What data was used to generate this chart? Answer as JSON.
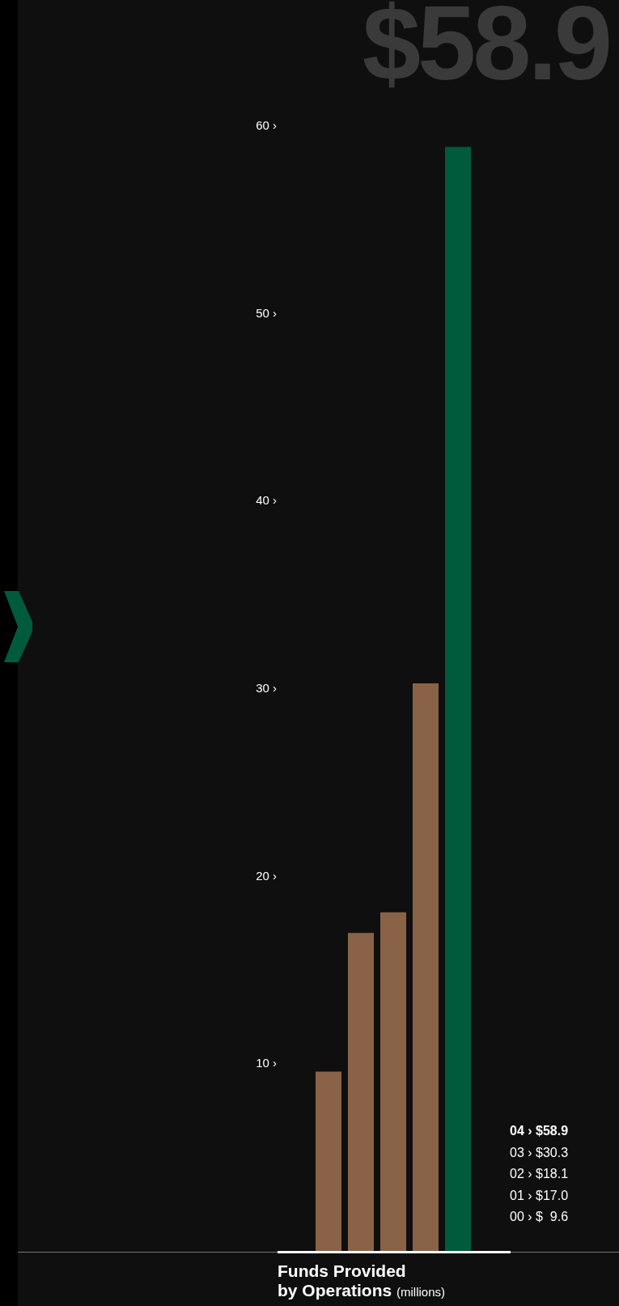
{
  "chart_data": {
    "type": "bar",
    "title": "Funds Provided",
    "subtitle": "by Operations",
    "xlabel": "(millions)",
    "categories": [
      null,
      null,
      null,
      null,
      null
    ],
    "values": [
      9.6,
      17.0,
      18.1,
      30.3,
      58.9
    ],
    "colors": [
      "#8a6248",
      "#8a6248",
      "#8a6248",
      "#8a6248",
      "#005a3c"
    ],
    "annotations": [
      "$58.9",
      "04 › $58.9",
      "03 › $30.3",
      "02 › $18.1",
      "01 › $17.0",
      "00 › $  9.6"
    ],
    "ylim": [
      0,
      60
    ],
    "yticks": [
      {
        "value": 10,
        "label": "10 ›"
      },
      {
        "value": 20,
        "label": "20 ›"
      },
      {
        "value": 30,
        "label": "30 ›"
      },
      {
        "value": 40,
        "label": "40 ›"
      },
      {
        "value": 50,
        "label": "50 ›"
      },
      {
        "value": 60,
        "label": "60 ›"
      }
    ],
    "legend": false
  }
}
